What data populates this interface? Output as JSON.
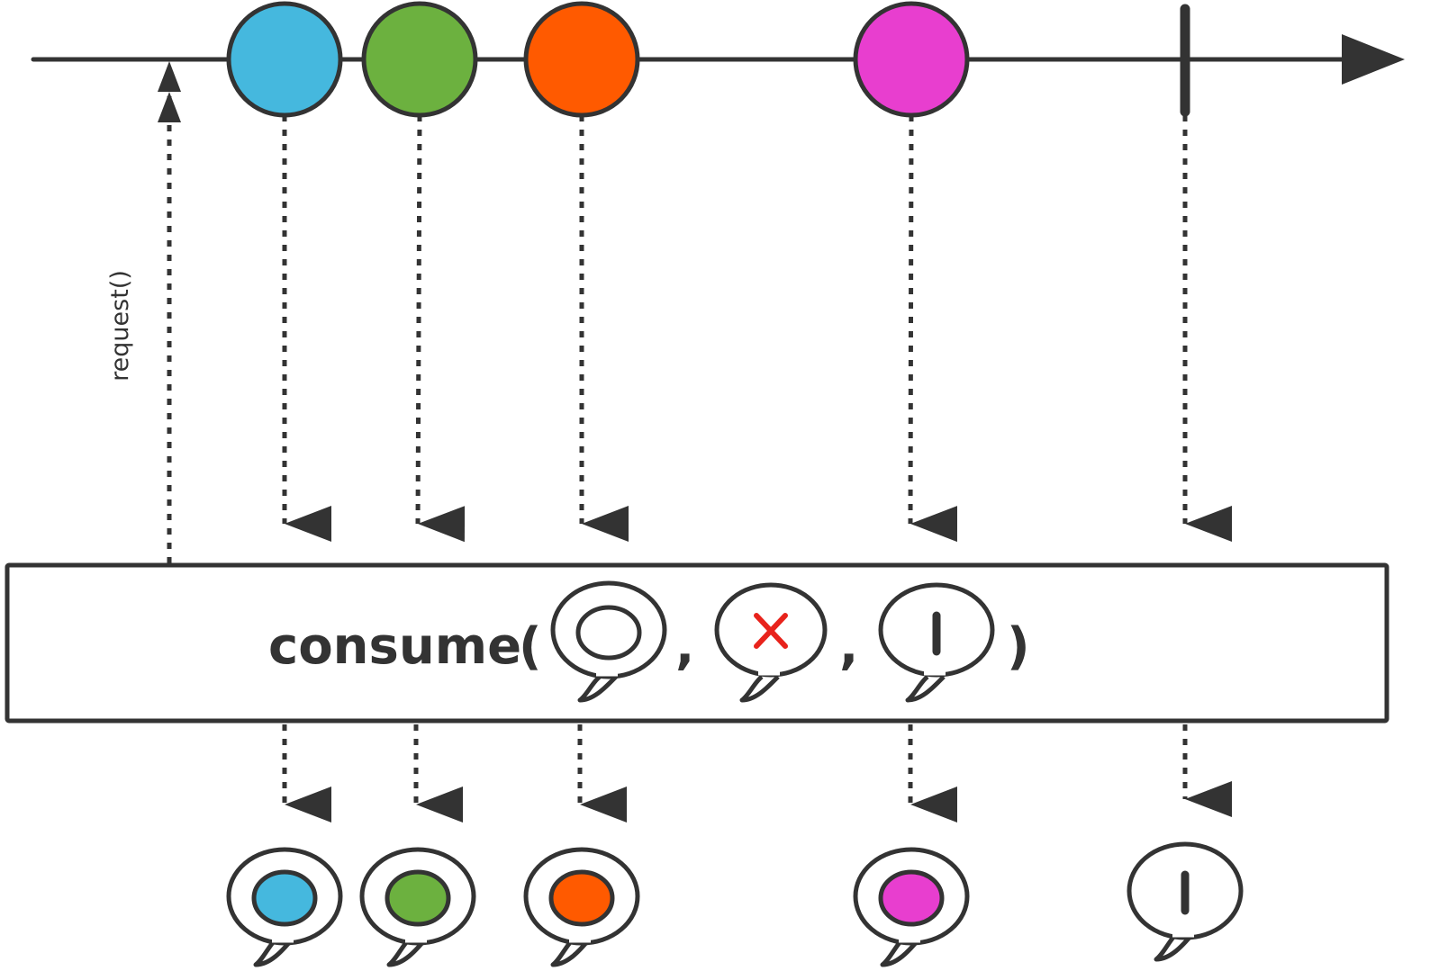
{
  "operator": {
    "name": "consume",
    "open_paren": "(",
    "separator": ",",
    "close_paren": ")",
    "arguments": [
      "on-next-bubble-icon",
      "on-error-bubble-icon",
      "on-complete-bubble-icon"
    ]
  },
  "request": {
    "label": "request()"
  },
  "source": {
    "items": [
      {
        "name": "blue",
        "color": "#45B8DE"
      },
      {
        "name": "green",
        "color": "#6CB13F"
      },
      {
        "name": "orange",
        "color": "#FF5A00"
      },
      {
        "name": "magenta",
        "color": "#E83ECF"
      }
    ],
    "terminal": "completion"
  },
  "output": {
    "items": [
      {
        "name": "blue",
        "color": "#45B8DE"
      },
      {
        "name": "green",
        "color": "#6CB13F"
      },
      {
        "name": "orange",
        "color": "#FF5A00"
      },
      {
        "name": "magenta",
        "color": "#E83ECF"
      }
    ],
    "terminal": "completion-bubble-icon"
  },
  "colors": {
    "stroke": "#333333",
    "error": "#E8231C",
    "background": "#ffffff"
  }
}
